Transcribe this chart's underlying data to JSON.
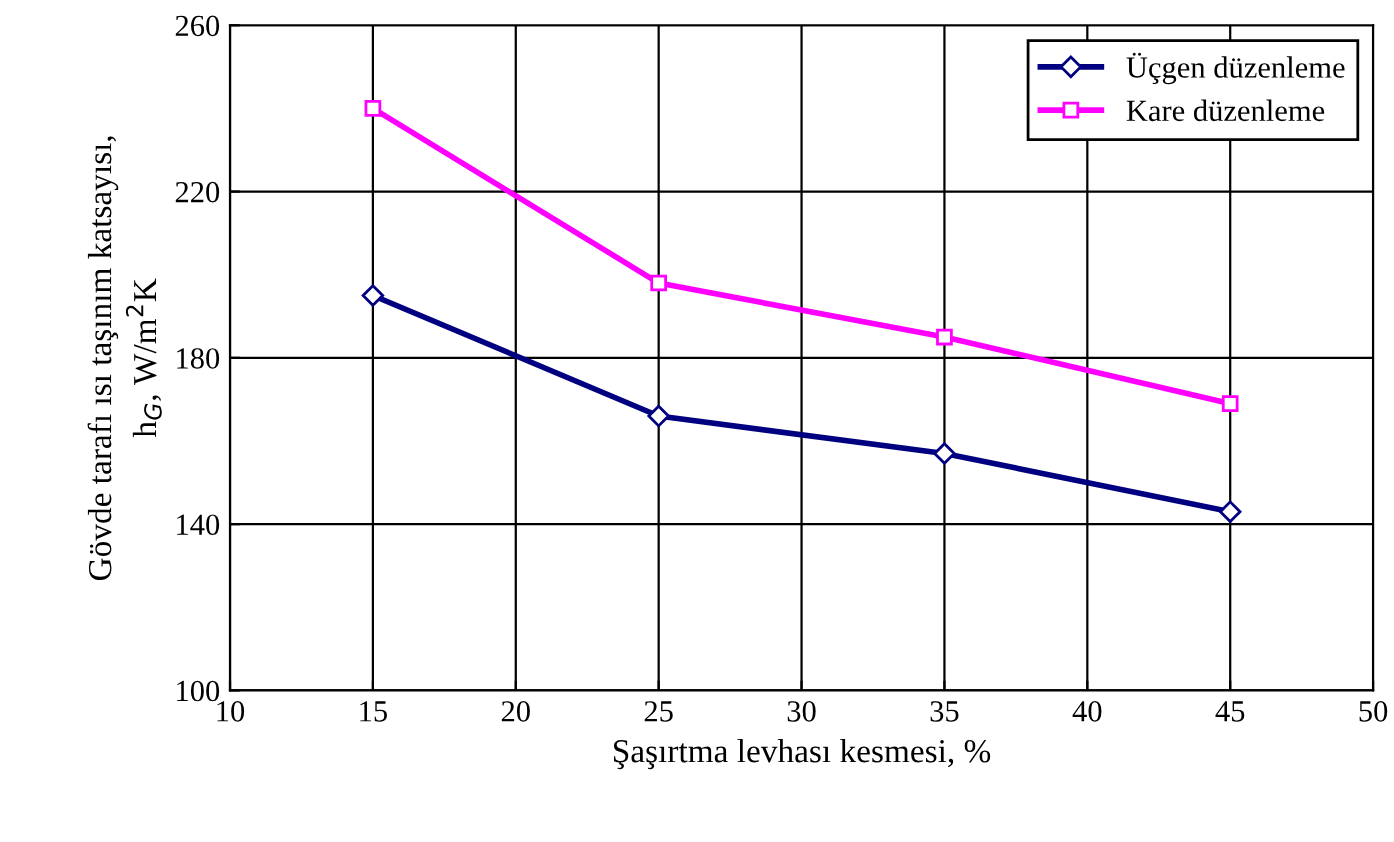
{
  "chart_data": {
    "type": "line",
    "xlabel": "Şaşırtma levhası kesmesi, %",
    "ylabel": "Gövde tarafı ısı taşınım katsayısı,\nh$_{G}$, W/m$^{2}$K",
    "x": [
      15,
      25,
      35,
      45
    ],
    "series": [
      {
        "name": "Üçgen düzenleme",
        "color": "#000080",
        "marker": "diamond",
        "values": [
          195,
          166,
          157,
          143
        ]
      },
      {
        "name": "Kare düzenleme",
        "color": "#ff00ff",
        "marker": "square",
        "values": [
          240,
          198,
          185,
          169
        ]
      }
    ],
    "xlim": [
      10,
      50
    ],
    "xticks": [
      10,
      15,
      20,
      25,
      30,
      35,
      40,
      45,
      50
    ],
    "ylim": [
      100,
      260
    ],
    "yticks": [
      100,
      140,
      180,
      220,
      260
    ],
    "grid": true,
    "legend": "top right",
    "line_style": "solid"
  }
}
